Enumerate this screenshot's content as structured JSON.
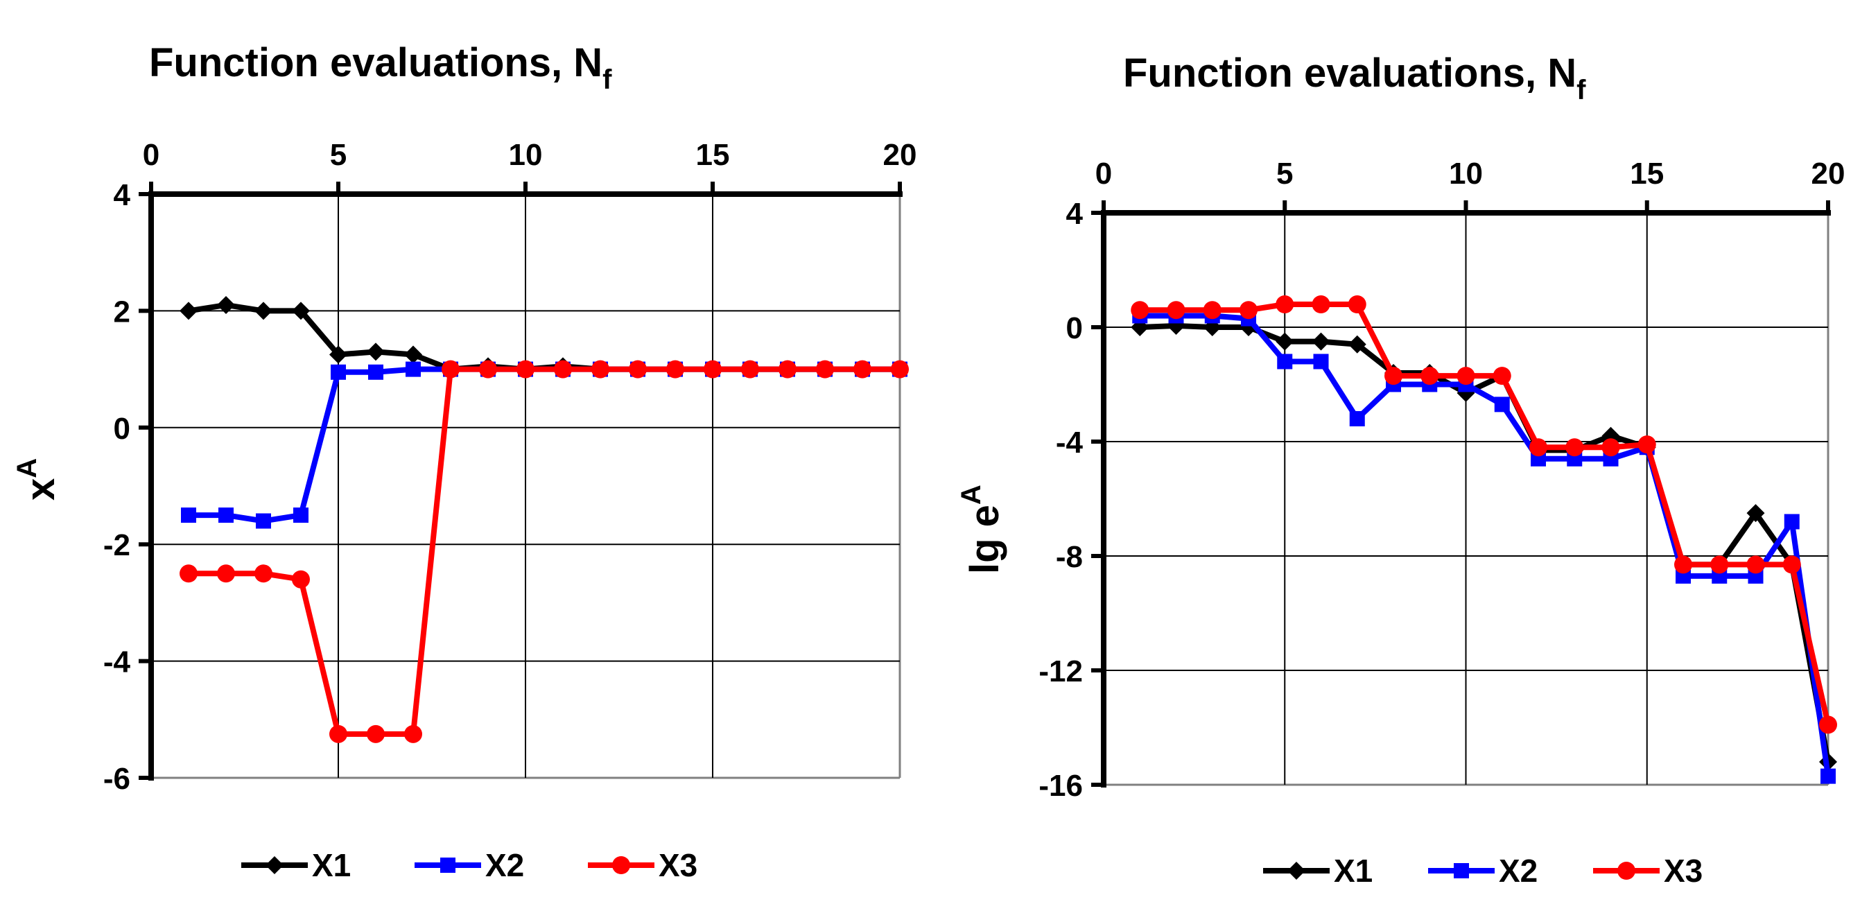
{
  "colors": {
    "X1": "#000000",
    "X2": "#0000ff",
    "X3": "#ff0000",
    "grid": "#000000",
    "plot_border": "#808080"
  },
  "chart_data": [
    {
      "type": "line",
      "title": "Function evaluations, N",
      "title_subscript": "f",
      "xlabel": "Function evaluations, N_f",
      "ylabel": "x",
      "ylabel_superscript": "A",
      "xlim": [
        0,
        20
      ],
      "ylim": [
        -6,
        4
      ],
      "x_ticks": [
        "0",
        "5",
        "10",
        "15",
        "20"
      ],
      "y_ticks": [
        "4",
        "2",
        "0",
        "-2",
        "-4",
        "-6"
      ],
      "x_axis_position": "top",
      "grid": true,
      "legend_position": "bottom",
      "x": [
        1,
        2,
        3,
        4,
        5,
        6,
        7,
        8,
        9,
        10,
        11,
        12,
        13,
        14,
        15,
        16,
        17,
        18,
        19,
        20
      ],
      "series": [
        {
          "name": "X1",
          "marker": "diamond",
          "values": [
            2.0,
            2.1,
            2.0,
            2.0,
            1.25,
            1.3,
            1.25,
            1.0,
            1.05,
            1.0,
            1.05,
            1.0,
            1.0,
            1.0,
            1.0,
            1.0,
            1.0,
            1.0,
            1.0,
            1.0
          ]
        },
        {
          "name": "X2",
          "marker": "square",
          "values": [
            -1.5,
            -1.5,
            -1.6,
            -1.5,
            0.95,
            0.95,
            1.0,
            1.0,
            1.0,
            1.0,
            1.0,
            1.0,
            1.0,
            1.0,
            1.0,
            1.0,
            1.0,
            1.0,
            1.0,
            1.0
          ]
        },
        {
          "name": "X3",
          "marker": "circle",
          "values": [
            -2.5,
            -2.5,
            -2.5,
            -2.6,
            -5.25,
            -5.25,
            -5.25,
            1.0,
            1.0,
            1.0,
            1.0,
            1.0,
            1.0,
            1.0,
            1.0,
            1.0,
            1.0,
            1.0,
            1.0,
            1.0
          ]
        }
      ]
    },
    {
      "type": "line",
      "title": "Function evaluations, N",
      "title_subscript": "f",
      "xlabel": "Function evaluations, N_f",
      "ylabel": "lg e",
      "ylabel_superscript": "A",
      "xlim": [
        0,
        20
      ],
      "ylim": [
        -16,
        4
      ],
      "x_ticks": [
        "0",
        "5",
        "10",
        "15",
        "20"
      ],
      "y_ticks": [
        "4",
        "0",
        "-4",
        "-8",
        "-12",
        "-16"
      ],
      "x_axis_position": "top",
      "grid": true,
      "legend_position": "bottom",
      "x": [
        1,
        2,
        3,
        4,
        5,
        6,
        7,
        8,
        9,
        10,
        11,
        12,
        13,
        14,
        15,
        16,
        17,
        18,
        19,
        20
      ],
      "series": [
        {
          "name": "X1",
          "marker": "diamond",
          "values": [
            0.0,
            0.05,
            0.0,
            0.0,
            -0.5,
            -0.5,
            -0.6,
            -1.6,
            -1.6,
            -2.3,
            -1.7,
            -4.3,
            -4.3,
            -3.8,
            -4.2,
            -8.3,
            -8.3,
            -6.5,
            -8.3,
            -15.2
          ]
        },
        {
          "name": "X2",
          "marker": "square",
          "values": [
            0.4,
            0.4,
            0.4,
            0.3,
            -1.2,
            -1.2,
            -3.2,
            -2.0,
            -2.0,
            -2.0,
            -2.7,
            -4.6,
            -4.6,
            -4.6,
            -4.2,
            -8.7,
            -8.7,
            -8.7,
            -6.8,
            -15.7
          ]
        },
        {
          "name": "X3",
          "marker": "circle",
          "values": [
            0.6,
            0.6,
            0.6,
            0.6,
            0.8,
            0.8,
            0.8,
            -1.7,
            -1.7,
            -1.7,
            -1.7,
            -4.2,
            -4.2,
            -4.2,
            -4.1,
            -8.3,
            -8.3,
            -8.3,
            -8.3,
            -13.9
          ]
        }
      ]
    }
  ],
  "legend": {
    "X1": "X1",
    "X2": "X2",
    "X3": "X3"
  }
}
